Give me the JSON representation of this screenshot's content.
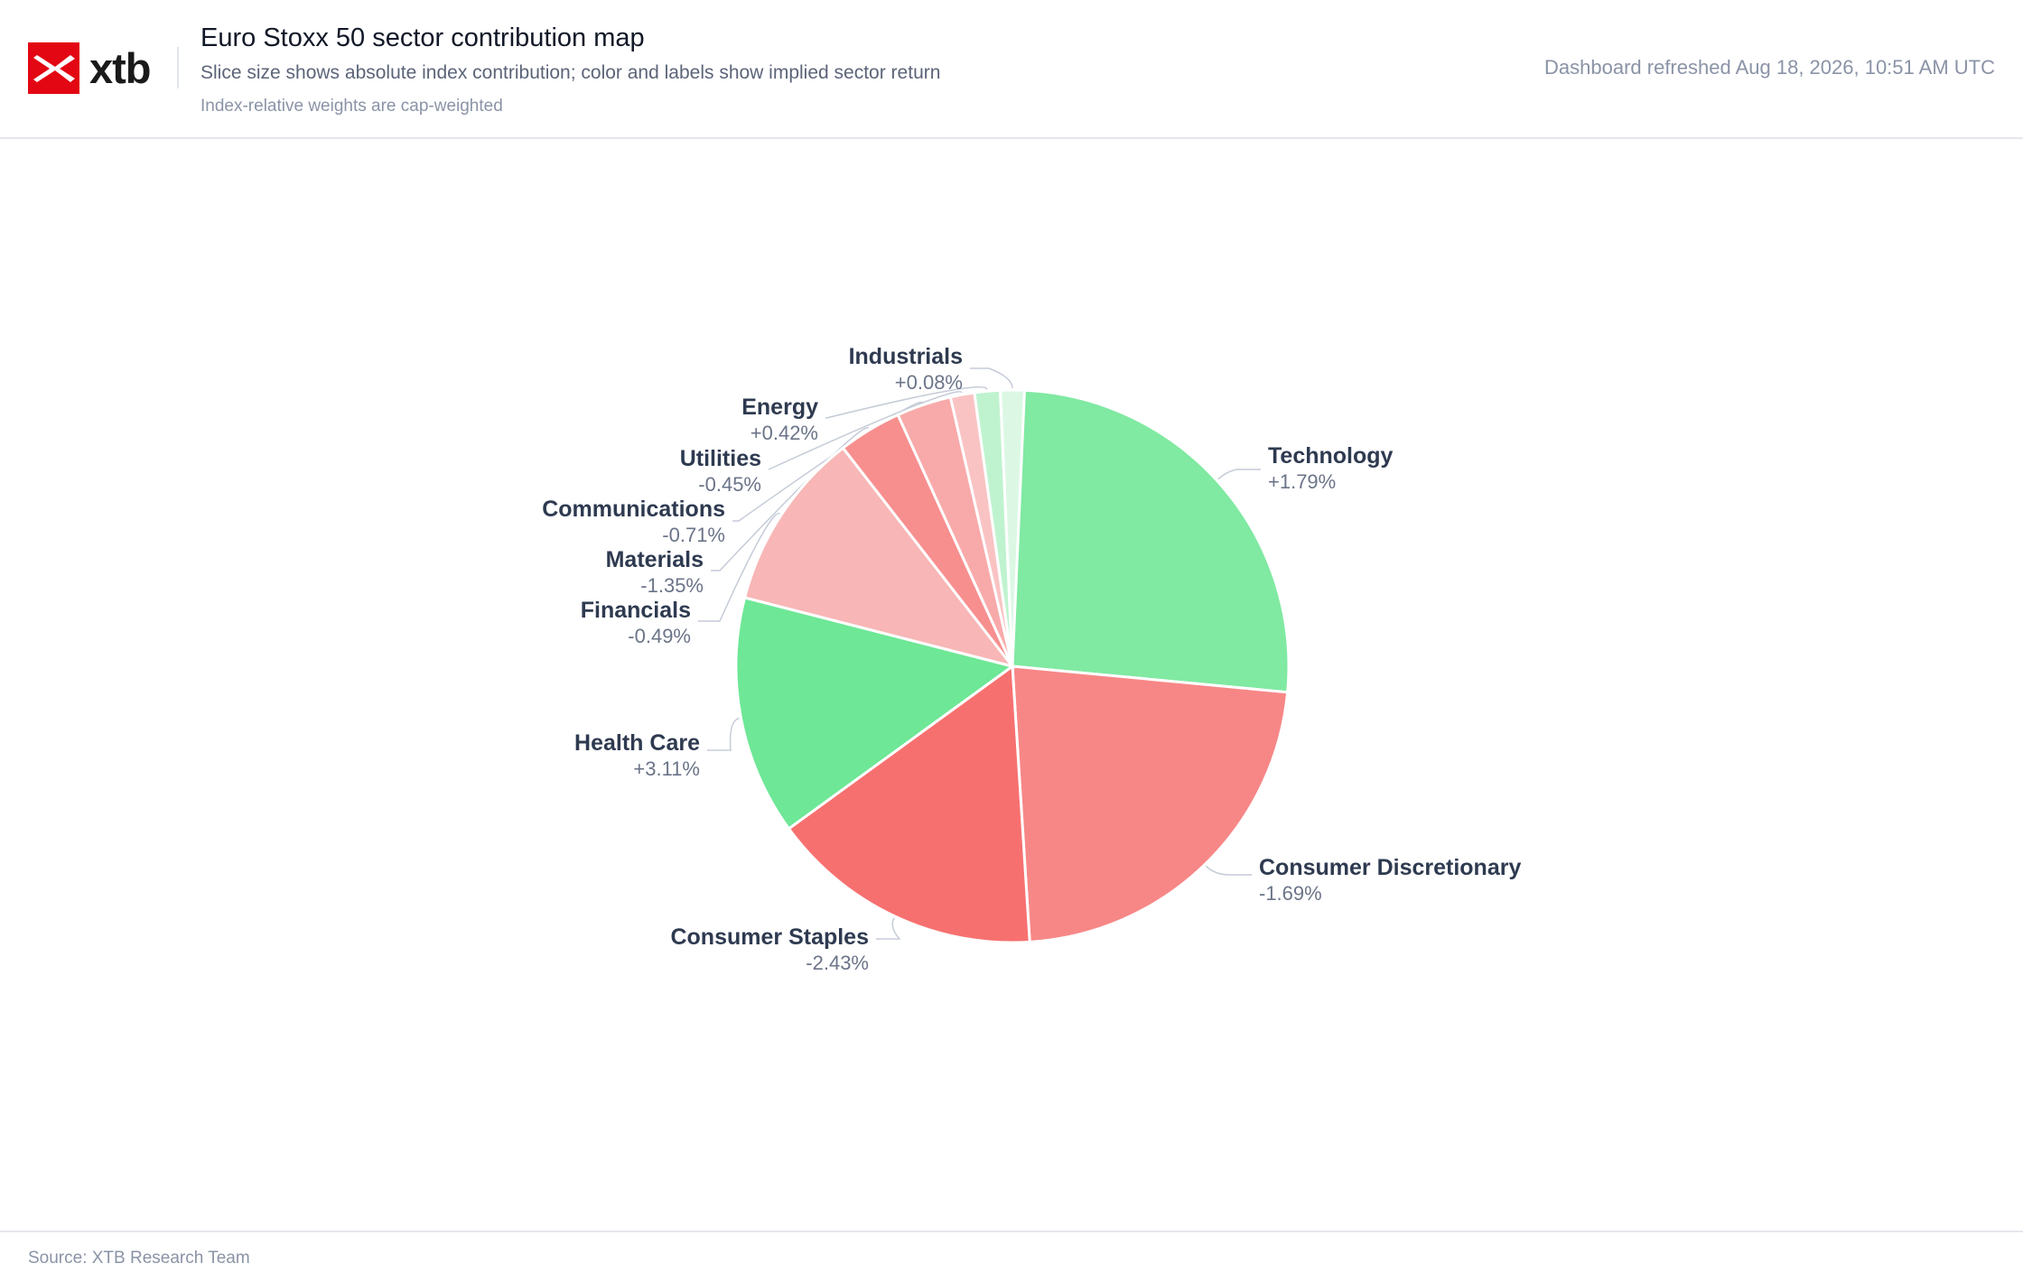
{
  "header": {
    "logo_text": "xtb",
    "title": "Euro Stoxx 50 sector contribution map",
    "subtitle": "Slice size shows absolute index contribution; color and labels show implied sector return",
    "note": "Index-relative weights are cap-weighted",
    "refreshed": "Dashboard refreshed Aug 18, 2026, 10:51 AM UTC"
  },
  "footer": {
    "source": "Source: XTB Research Team"
  },
  "colors": {
    "positive_strong": "#6ee796",
    "positive_mid": "#80e9a2",
    "positive_light": "#bff3cf",
    "positive_faint": "#dcf8e5",
    "negative_strong": "#f77070",
    "negative_mid": "#f78787",
    "negative_light": "#f8b6b6",
    "negative_faint": "#fac9c9",
    "leader_line": "#c5ccd8"
  },
  "chart_data": {
    "type": "pie",
    "title": "Euro Stoxx 50 sector contribution map",
    "value_meaning": "absolute index contribution (share of pie)",
    "slices": [
      {
        "label": "Technology",
        "return_label": "+1.79%",
        "share": 0.265,
        "color": "#80e9a2"
      },
      {
        "label": "Consumer Discretionary",
        "return_label": "-1.69%",
        "share": 0.225,
        "color": "#f78787"
      },
      {
        "label": "Consumer Staples",
        "return_label": "-2.43%",
        "share": 0.16,
        "color": "#f77070"
      },
      {
        "label": "Health Care",
        "return_label": "+3.11%",
        "share": 0.14,
        "color": "#6ee796"
      },
      {
        "label": "Financials",
        "return_label": "-0.49%",
        "share": 0.105,
        "color": "#f8b6b6"
      },
      {
        "label": "Materials",
        "return_label": "-1.35%",
        "share": 0.037,
        "color": "#f78f8f"
      },
      {
        "label": "Communications",
        "return_label": "-0.71%",
        "share": 0.032,
        "color": "#f8aaaa"
      },
      {
        "label": "Utilities",
        "return_label": "-0.45%",
        "share": 0.014,
        "color": "#fac3c3"
      },
      {
        "label": "Energy",
        "return_label": "+0.42%",
        "share": 0.015,
        "color": "#bff3cf"
      },
      {
        "label": "Industrials",
        "return_label": "+0.08%",
        "share": 0.014,
        "color": "#dcf8e5"
      }
    ]
  }
}
